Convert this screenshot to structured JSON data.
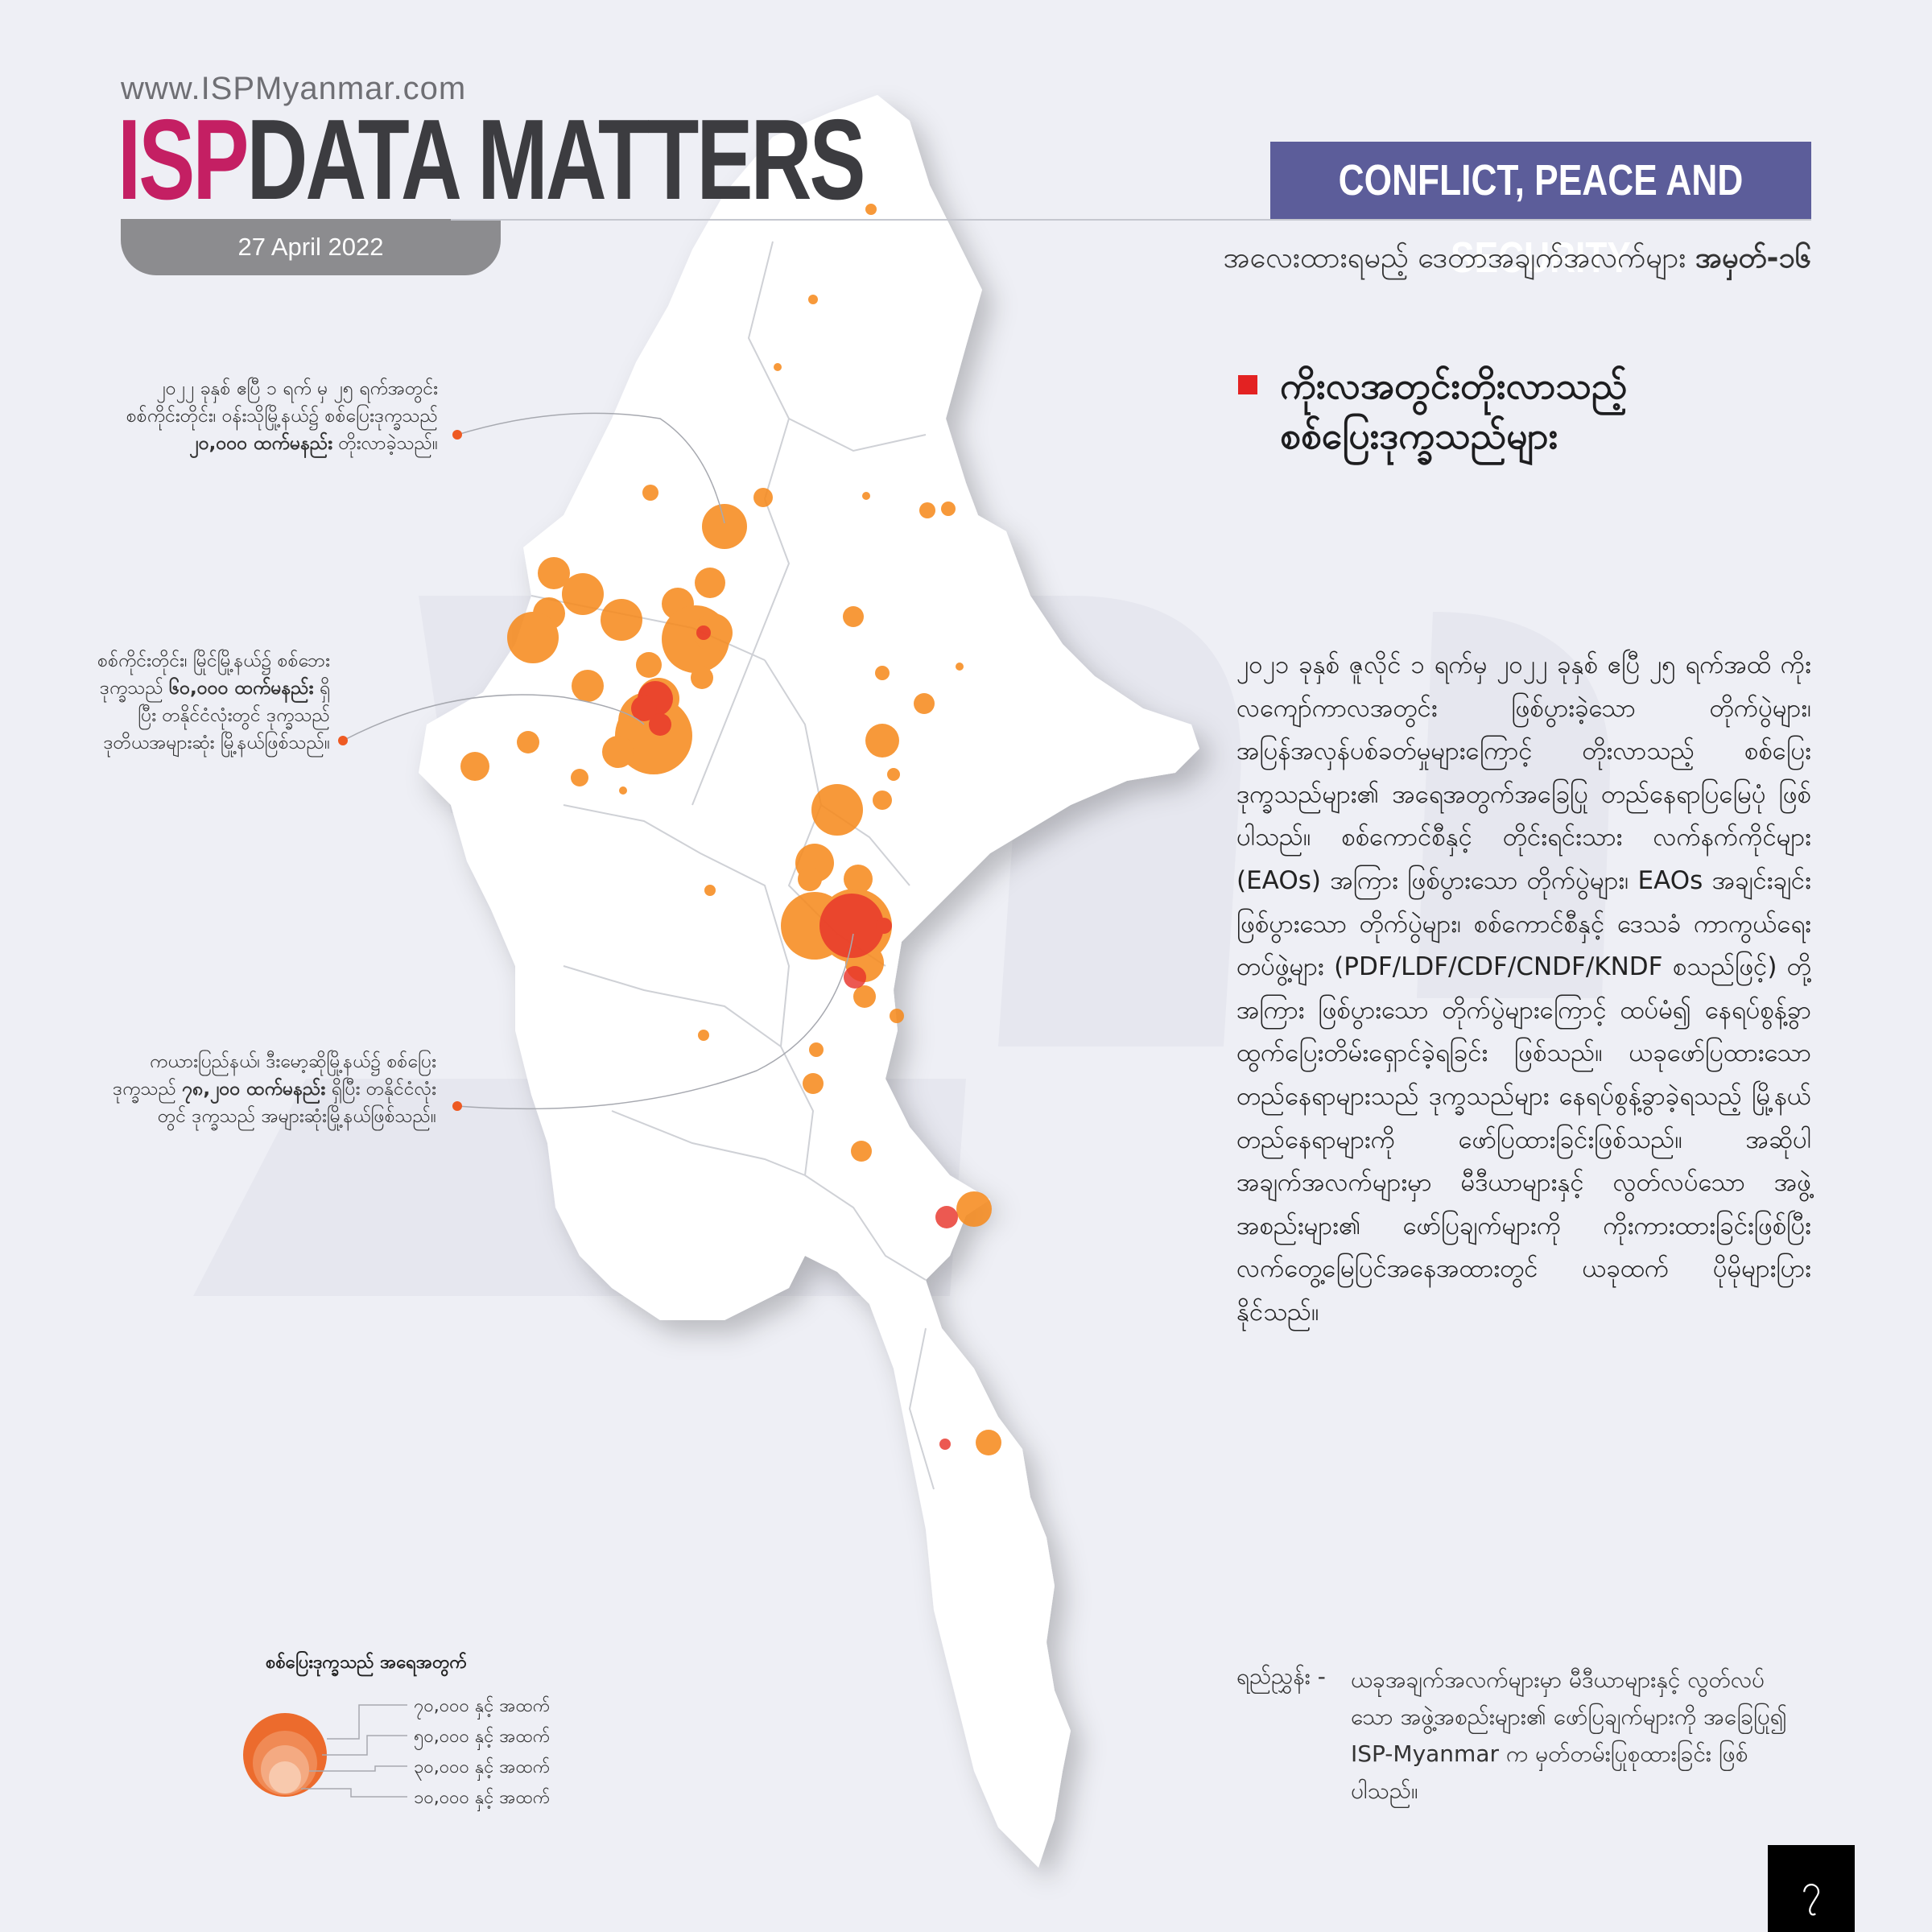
{
  "header": {
    "site_url": "www.ISPMyanmar.com",
    "brand_prefix": "ISP",
    "brand_name": "DATA MATTERS",
    "date": "27 April 2022",
    "category": "CONFLICT, PEACE AND SECURITY",
    "series_label": "အလေးထားရမည့် ဒေတာအချက်အလက်များ",
    "series_number": "အမှတ်-၁၆"
  },
  "map_title": {
    "line1": "ကိုးလအတွင်းတိုးလာသည့်",
    "line2": "စစ်ပြေးဒုက္ခသည်များ",
    "marker_color": "#e32222"
  },
  "body_text": "၂၀၂၁ ခုနှစ် ဇူလိုင် ၁ ရက်မှ ၂၀၂၂ ခုနှစ် ဧပြီ ၂၅ ရက်အထိ ကိုးလကျော်ကာလအတွင်း ဖြစ်ပွားခဲ့သော တိုက်ပွဲများ၊ အပြန်အလှန်ပစ်ခတ်မှုများကြောင့် တိုးလာသည့် စစ်ပြေးဒုက္ခသည်များ၏ အရေအတွက်အခြေပြု တည်နေရာပြမြေပုံ ဖြစ်ပါသည်။ စစ်ကောင်စီနှင့် တိုင်းရင်းသား လက်နက်ကိုင်များ (EAOs) အကြား ဖြစ်ပွားသော တိုက်ပွဲများ၊ EAOs အချင်းချင်းဖြစ်ပွားသော တိုက်ပွဲများ၊ စစ်ကောင်စီနှင့် ဒေသခံ ကာကွယ်ရေးတပ်ဖွဲ့များ (PDF/LDF/CDF/CNDF/KNDF စသည်ဖြင့်) တို့အကြား ဖြစ်ပွားသော တိုက်ပွဲများကြောင့် ထပ်မံ၍ နေရပ်စွန့်ခွာ ထွက်ပြေးတိမ်းရှောင်ခဲ့ရခြင်း ဖြစ်သည်။ ယခုဖော်ပြထားသော တည်နေရာများသည် ဒုက္ခသည်များ နေရပ်စွန့်ခွာခဲ့ရသည့် မြို့နယ်တည်နေရာများကို ဖော်ပြထားခြင်းဖြစ်သည်။ အဆိုပါ အချက်အလက်များမှာ မီဒီယာများနှင့် လွတ်လပ်သော အဖွဲ့အစည်းများ၏ ဖော်ပြချက်များကို ကိုးကားထားခြင်းဖြစ်ပြီး လက်တွေ့မြေပြင်အနေအထားတွင် ယခုထက် ပိုမိုများပြားနိုင်သည်။",
  "callouts": [
    {
      "pre": "၂၀၂၂ ခုနှစ် ဧပြီ ၁ ရက် မှ ၂၅ ရက်အတွင်း စစ်ကိုင်းတိုင်း၊ ဝန်းသိုမြို့နယ်၌ စစ်ပြေးဒုက္ခသည် ",
      "bold": "၂၀,၀၀၀ ထက်မနည်း",
      "post": " တိုးလာခဲ့သည်။"
    },
    {
      "pre": "စစ်ကိုင်းတိုင်း၊ မြိုင်မြို့နယ်၌ စစ်ဘေးဒုက္ခသည် ",
      "bold": "၆၀,၀၀၀ ထက်မနည်း",
      "post": " ရှိပြီး တနိုင်ငံလုံးတွင် ဒုက္ခသည် ဒုတိယအများဆုံး မြို့နယ်ဖြစ်သည်။"
    },
    {
      "pre": "ကယားပြည်နယ်၊ ဒီးမော့ဆိုမြို့နယ်၌ စစ်ပြေးဒုက္ခသည် ",
      "bold": "၇၈,၂၀၀ ထက်မနည်း",
      "post": " ရှိပြီး တနိုင်ငံလုံးတွင် ဒုက္ခသည် အများဆုံးမြို့နယ်ဖြစ်သည်။"
    }
  ],
  "legend": {
    "title": "စစ်ပြေးဒုက္ခသည် အရေအတွက်",
    "items": [
      {
        "label": "၇၀,၀၀၀ နှင့် အထက်",
        "value": 70000,
        "color": "#ec6b2d"
      },
      {
        "label": "၅၀,၀၀၀ နှင့် အထက်",
        "value": 50000,
        "color": "#f08a55"
      },
      {
        "label": "၃၀,၀၀၀ နှင့် အထက်",
        "value": 30000,
        "color": "#f4aa82"
      },
      {
        "label": "၁၀,၀၀၀ နှင့် အထက်",
        "value": 10000,
        "color": "#f8c9ad"
      }
    ]
  },
  "source": {
    "label": "ရည်ညွှန်း -",
    "text": "ယခုအချက်အလက်များမှာ မီဒီယာများနှင့် လွတ်လပ်သော အဖွဲ့အစည်းများ၏ ဖော်ပြချက်များကို အခြေပြု၍ ISP-Myanmar က မှတ်တမ်းပြုစုထားခြင်း ဖြစ်ပါသည်။"
  },
  "page_number": "၇",
  "colors": {
    "brand_pink": "#c41f63",
    "brand_dark": "#3c3c40",
    "banner": "#5c5d9a",
    "bubble_orange": "#f68b1f",
    "bubble_red": "#e8342b",
    "background": "#eeeff5",
    "country_fill": "#ffffff"
  }
}
